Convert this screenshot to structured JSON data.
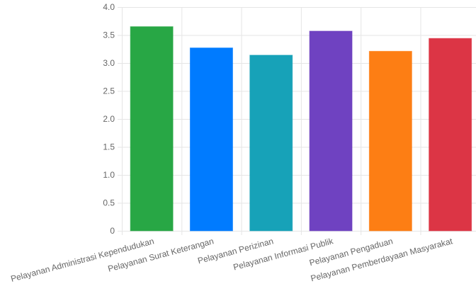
{
  "chart_data": {
    "type": "bar",
    "title": "",
    "xlabel": "",
    "ylabel": "",
    "categories": [
      "Pelayanan Administrasi Kependudukan",
      "Pelayanan Surat Keterangan",
      "Pelayanan Perizinan",
      "Pelayanan Informasi Publik",
      "Pelayanan Pengaduan",
      "Pelayanan Pemberdayaan Masyarakat"
    ],
    "values": [
      3.65,
      3.27,
      3.14,
      3.57,
      3.21,
      3.44
    ],
    "colors": [
      "#28a745",
      "#007bff",
      "#17a2b8",
      "#6f42c1",
      "#fd7e14",
      "#dc3545"
    ],
    "ylim": [
      0,
      4.0
    ],
    "yticks": [
      "0",
      "0.5",
      "1.0",
      "1.5",
      "2.0",
      "2.5",
      "3.0",
      "3.5",
      "4.0"
    ],
    "grid": true,
    "legend": "none"
  }
}
